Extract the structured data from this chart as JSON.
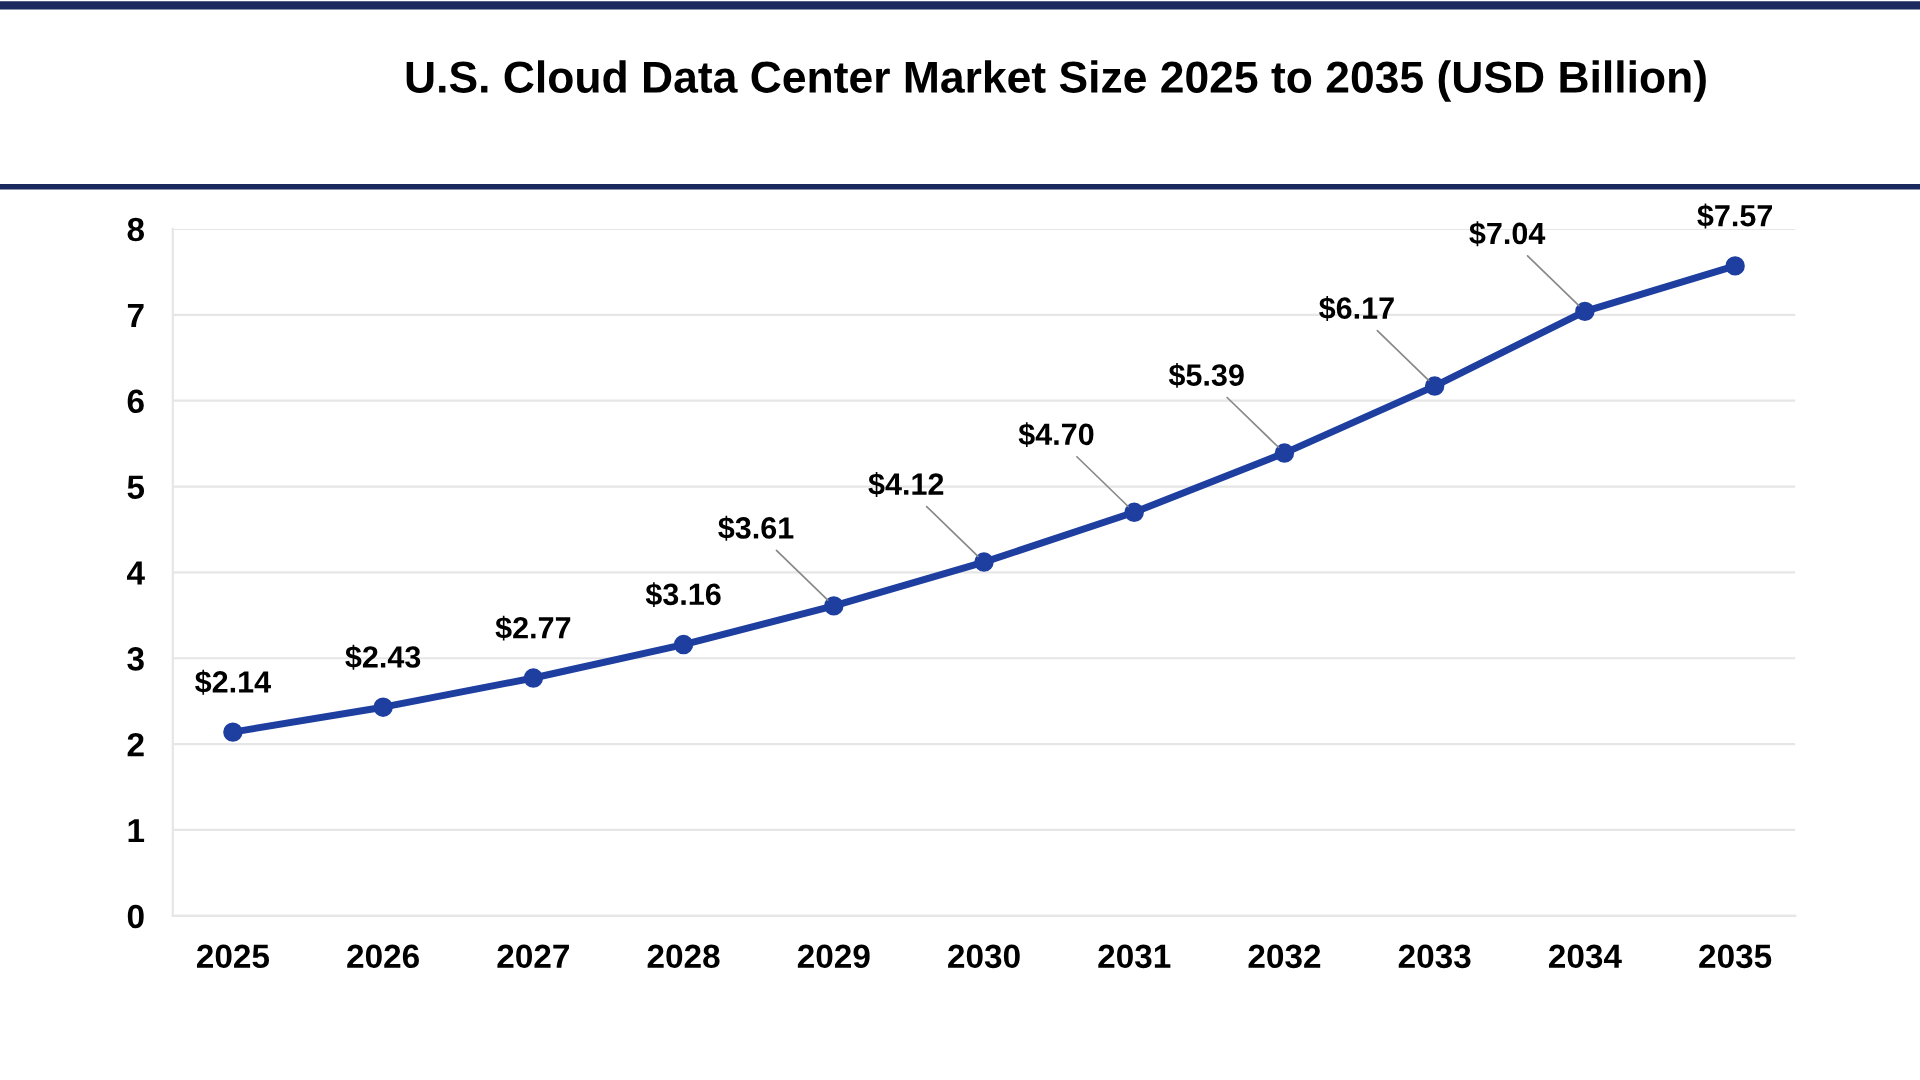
{
  "chart_data": {
    "type": "line",
    "title": "U.S. Cloud Data Center Market Size 2025 to 2035 (USD Billion)",
    "categories": [
      "2025",
      "2026",
      "2027",
      "2028",
      "2029",
      "2030",
      "2031",
      "2032",
      "2033",
      "2034",
      "2035"
    ],
    "values": [
      2.14,
      2.43,
      2.77,
      3.16,
      3.61,
      4.12,
      4.7,
      5.39,
      6.17,
      7.04,
      7.57
    ],
    "value_labels": [
      "$2.14",
      "$2.43",
      "$2.77",
      "$3.16",
      "$3.61",
      "$4.12",
      "$4.70",
      "$5.39",
      "$6.17",
      "$7.04",
      "$7.57"
    ],
    "color": "#1e3fa0",
    "marker": "circle",
    "line_style": "solid",
    "ylim": [
      0,
      8
    ],
    "yticks": [
      0,
      1,
      2,
      3,
      4,
      5,
      6,
      7,
      8
    ],
    "grid": "y",
    "legend": false
  }
}
